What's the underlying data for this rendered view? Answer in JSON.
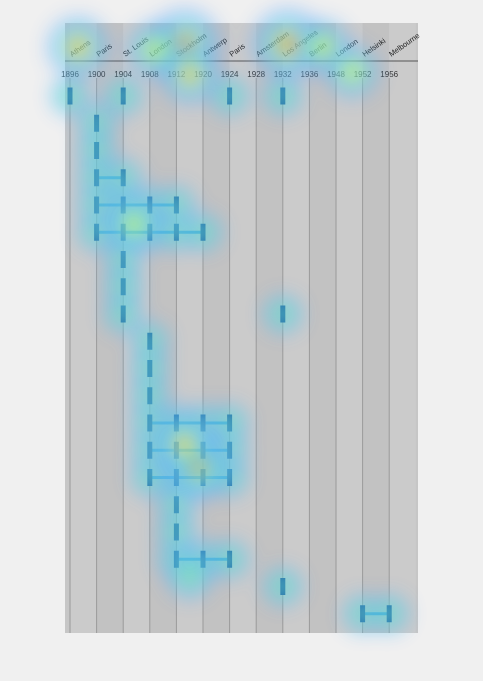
{
  "chart_data": {
    "type": "scatter",
    "title": "",
    "xlabel": "",
    "ylabel": "",
    "x_ticks": [
      {
        "year": "1896",
        "city": "Athens"
      },
      {
        "year": "1900",
        "city": "Paris"
      },
      {
        "year": "1904",
        "city": "St. Louis"
      },
      {
        "year": "1908",
        "city": "London"
      },
      {
        "year": "1912",
        "city": "Stockholm"
      },
      {
        "year": "1920",
        "city": "Antwerp"
      },
      {
        "year": "1924",
        "city": "Paris"
      },
      {
        "year": "1928",
        "city": "Amsterdam"
      },
      {
        "year": "1932",
        "city": "Los Angeles"
      },
      {
        "year": "1936",
        "city": "Berlin"
      },
      {
        "year": "1948",
        "city": "London"
      },
      {
        "year": "1952",
        "city": "Helsinki"
      },
      {
        "year": "1956",
        "city": "Melbourne"
      }
    ],
    "rows": [
      {
        "marks": [
          0,
          2,
          6,
          8
        ]
      },
      {
        "marks": [
          1
        ]
      },
      {
        "marks": [
          1
        ]
      },
      {
        "marks": [
          1,
          2
        ],
        "connected": true
      },
      {
        "marks": [
          1,
          2,
          3,
          4
        ],
        "connected": true
      },
      {
        "marks": [
          1,
          2,
          3,
          4,
          5
        ],
        "connected": true
      },
      {
        "marks": [
          2
        ]
      },
      {
        "marks": [
          2
        ]
      },
      {
        "marks": [
          2,
          8
        ]
      },
      {
        "marks": [
          3
        ]
      },
      {
        "marks": [
          3
        ]
      },
      {
        "marks": [
          3
        ]
      },
      {
        "marks": [
          3,
          4,
          5,
          6
        ],
        "connected": true
      },
      {
        "marks": [
          3,
          4,
          5,
          6
        ],
        "connected": true
      },
      {
        "marks": [
          3,
          4,
          5,
          6
        ],
        "connected": true
      },
      {
        "marks": [
          4
        ]
      },
      {
        "marks": [
          4
        ]
      },
      {
        "marks": [
          4,
          5,
          6
        ],
        "connected": true
      },
      {
        "marks": [
          8
        ]
      },
      {
        "marks": [
          11,
          12
        ],
        "connected": true
      }
    ],
    "heat_spots": [
      {
        "col": 4.3,
        "row": -1.9,
        "level": 1.0
      },
      {
        "col": 8.2,
        "row": -1.9,
        "level": 1.0
      },
      {
        "col": 0.3,
        "row": -1.8,
        "level": 0.75
      },
      {
        "col": 4.5,
        "row": -0.8,
        "level": 0.7
      },
      {
        "col": 3.2,
        "row": -1.7,
        "level": 0.6
      },
      {
        "col": 9.5,
        "row": -1.8,
        "level": 0.6
      },
      {
        "col": 10.6,
        "row": -0.9,
        "level": 0.55
      },
      {
        "col": 4.8,
        "row": 13.6,
        "level": 0.85
      },
      {
        "col": 4.3,
        "row": 12.8,
        "level": 0.7
      },
      {
        "col": 2.4,
        "row": 4.7,
        "level": 0.55
      },
      {
        "col": 4.5,
        "row": 17.6,
        "level": 0.4
      }
    ],
    "grid": true,
    "colors": {
      "mark": "#0a3d8a",
      "line": "#3a8fd0",
      "panel": "#c6c6c6",
      "hot": "#d40000"
    }
  }
}
